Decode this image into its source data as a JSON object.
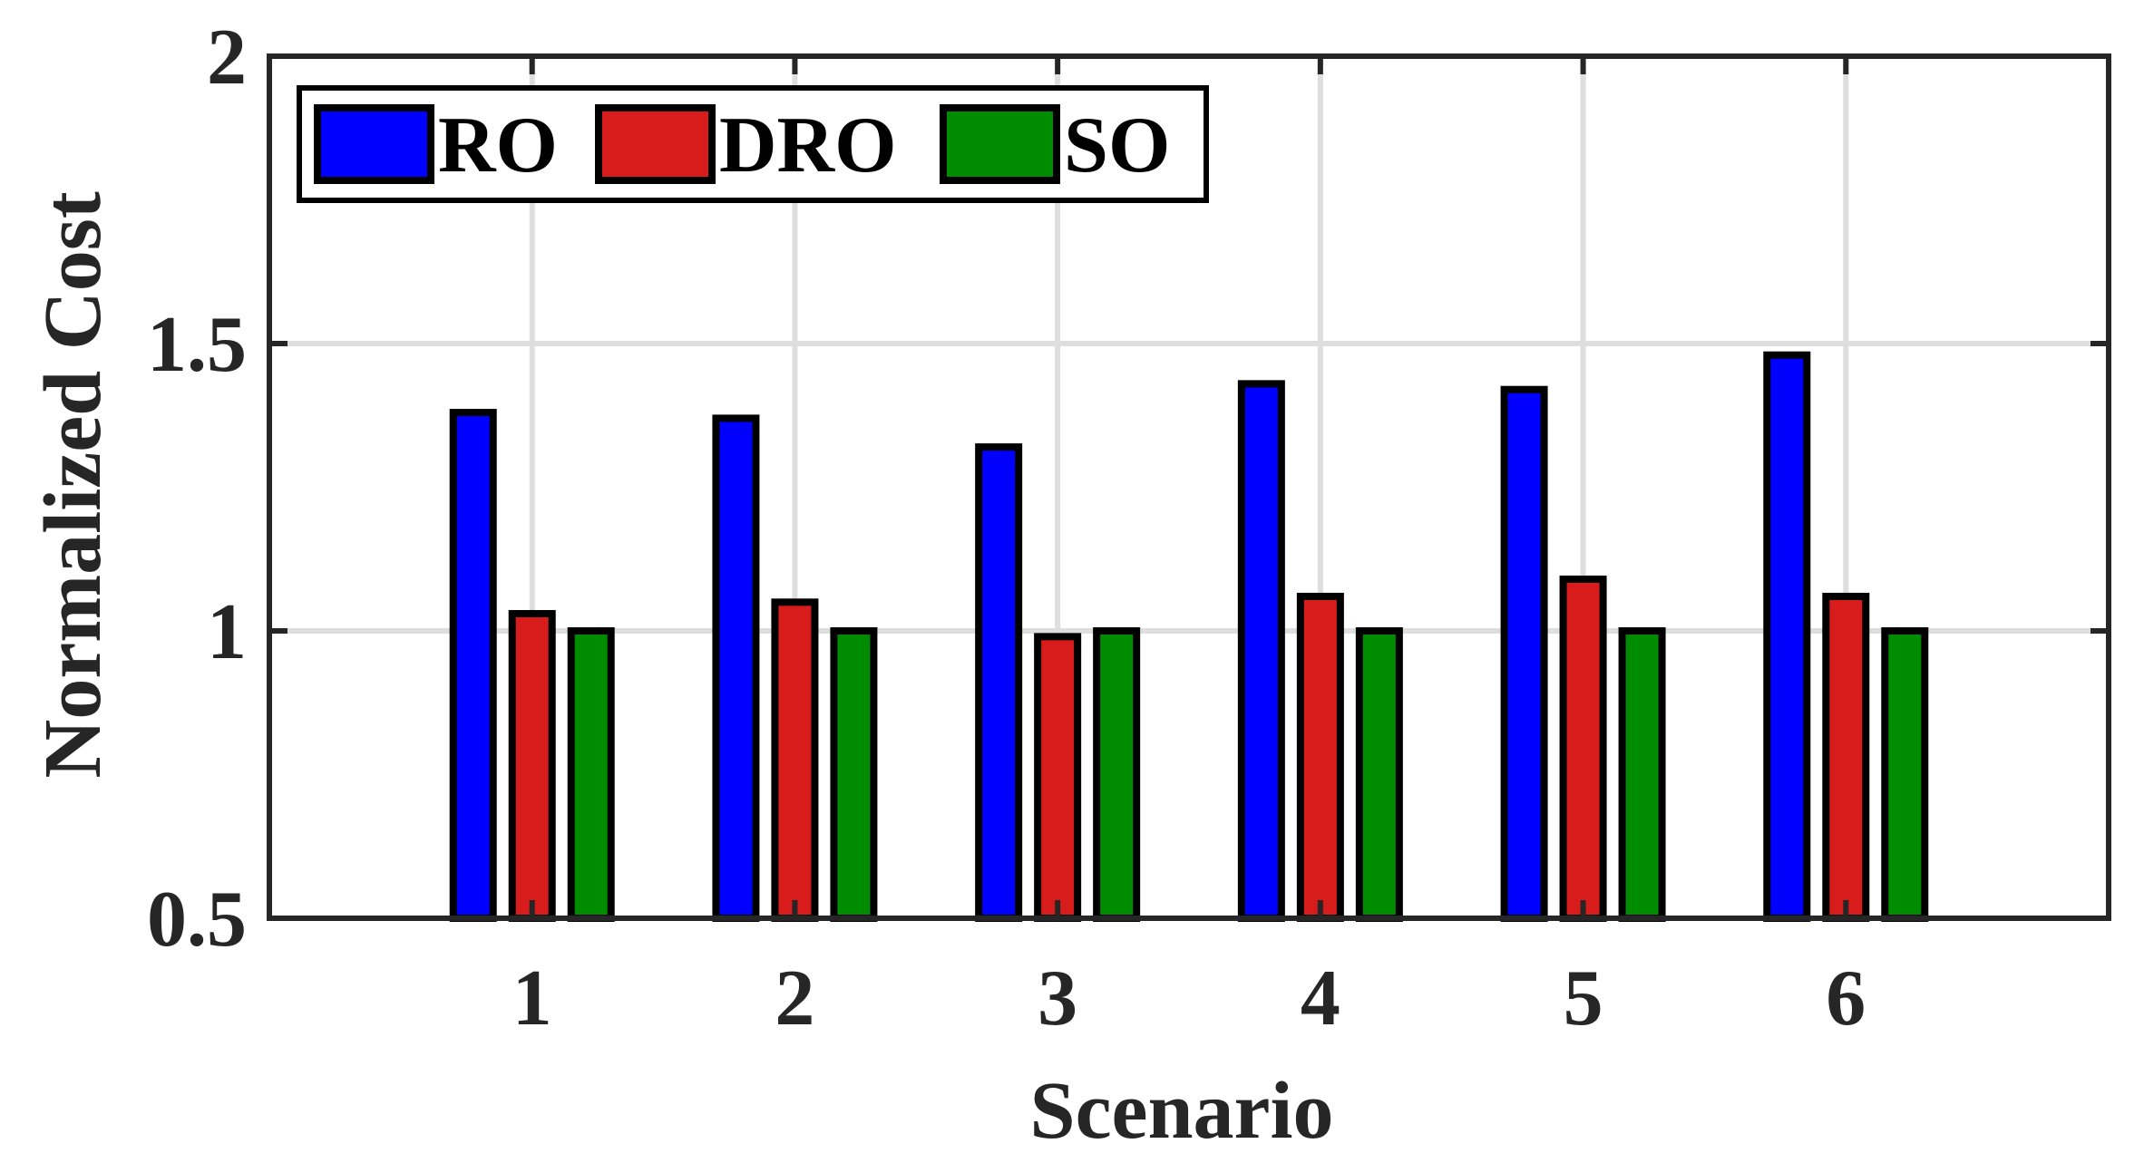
{
  "chart_data": {
    "type": "bar",
    "title": "",
    "xlabel": "Scenario",
    "ylabel": "Normalized Cost",
    "categories": [
      "1",
      "2",
      "3",
      "4",
      "5",
      "6"
    ],
    "series": [
      {
        "name": "RO",
        "color": "#0000ff",
        "values": [
          1.38,
          1.37,
          1.32,
          1.43,
          1.42,
          1.48
        ]
      },
      {
        "name": "DRO",
        "color": "#d81b1b",
        "values": [
          1.03,
          1.05,
          0.99,
          1.06,
          1.09,
          1.06
        ]
      },
      {
        "name": "SO",
        "color": "#008c00",
        "values": [
          1.0,
          1.0,
          1.0,
          1.0,
          1.0,
          1.0
        ]
      }
    ],
    "ylim": [
      0.5,
      2
    ],
    "yticks": [
      "0.5",
      "1",
      "1.5",
      "2"
    ],
    "xlim": [
      0,
      7
    ],
    "grid": true,
    "legend_position": "top-left",
    "legend_orientation": "horizontal"
  }
}
